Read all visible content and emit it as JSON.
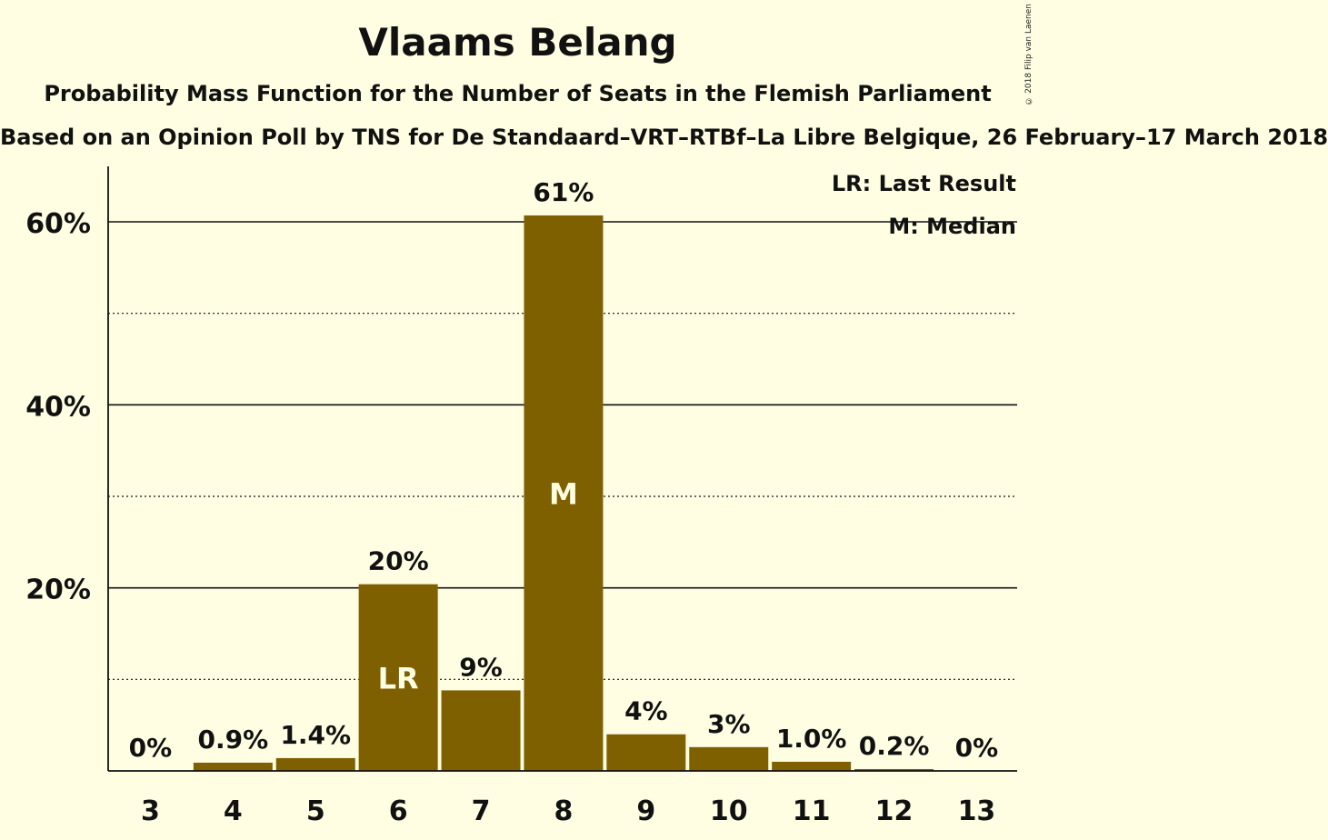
{
  "title": "Vlaams Belang",
  "subtitle": "Probability Mass Function for the Number of Seats in the Flemish Parliament",
  "subtitle2": "Based on an Opinion Poll by TNS for De Standaard–VRT–RTBf–La Libre Belgique, 26 February–17 March 2018",
  "copyright": "© 2018 Filip van Laenen",
  "legend": {
    "lr": "LR: Last Result",
    "m": "M: Median"
  },
  "colors": {
    "bar": "#7F6000",
    "background": "#FFFEE3",
    "axis": "#111111"
  },
  "chart_data": {
    "type": "bar",
    "categories": [
      "3",
      "4",
      "5",
      "6",
      "7",
      "8",
      "9",
      "10",
      "11",
      "12",
      "13"
    ],
    "values": [
      0,
      0.9,
      1.4,
      20.4,
      8.8,
      60.7,
      4.0,
      2.6,
      1.0,
      0.2,
      0
    ],
    "value_labels": [
      "0%",
      "0.9%",
      "1.4%",
      "20%",
      "9%",
      "61%",
      "4%",
      "3%",
      "1.0%",
      "0.2%",
      "0%"
    ],
    "bar_markers": {
      "6": "LR",
      "8": "M"
    },
    "ylim": [
      0,
      66
    ],
    "yticks": [
      20,
      40,
      60
    ],
    "ytick_labels": [
      "20%",
      "40%",
      "60%"
    ],
    "minor_gridlines": [
      10,
      30,
      50
    ],
    "grid": true,
    "legend_position": "top-right"
  }
}
